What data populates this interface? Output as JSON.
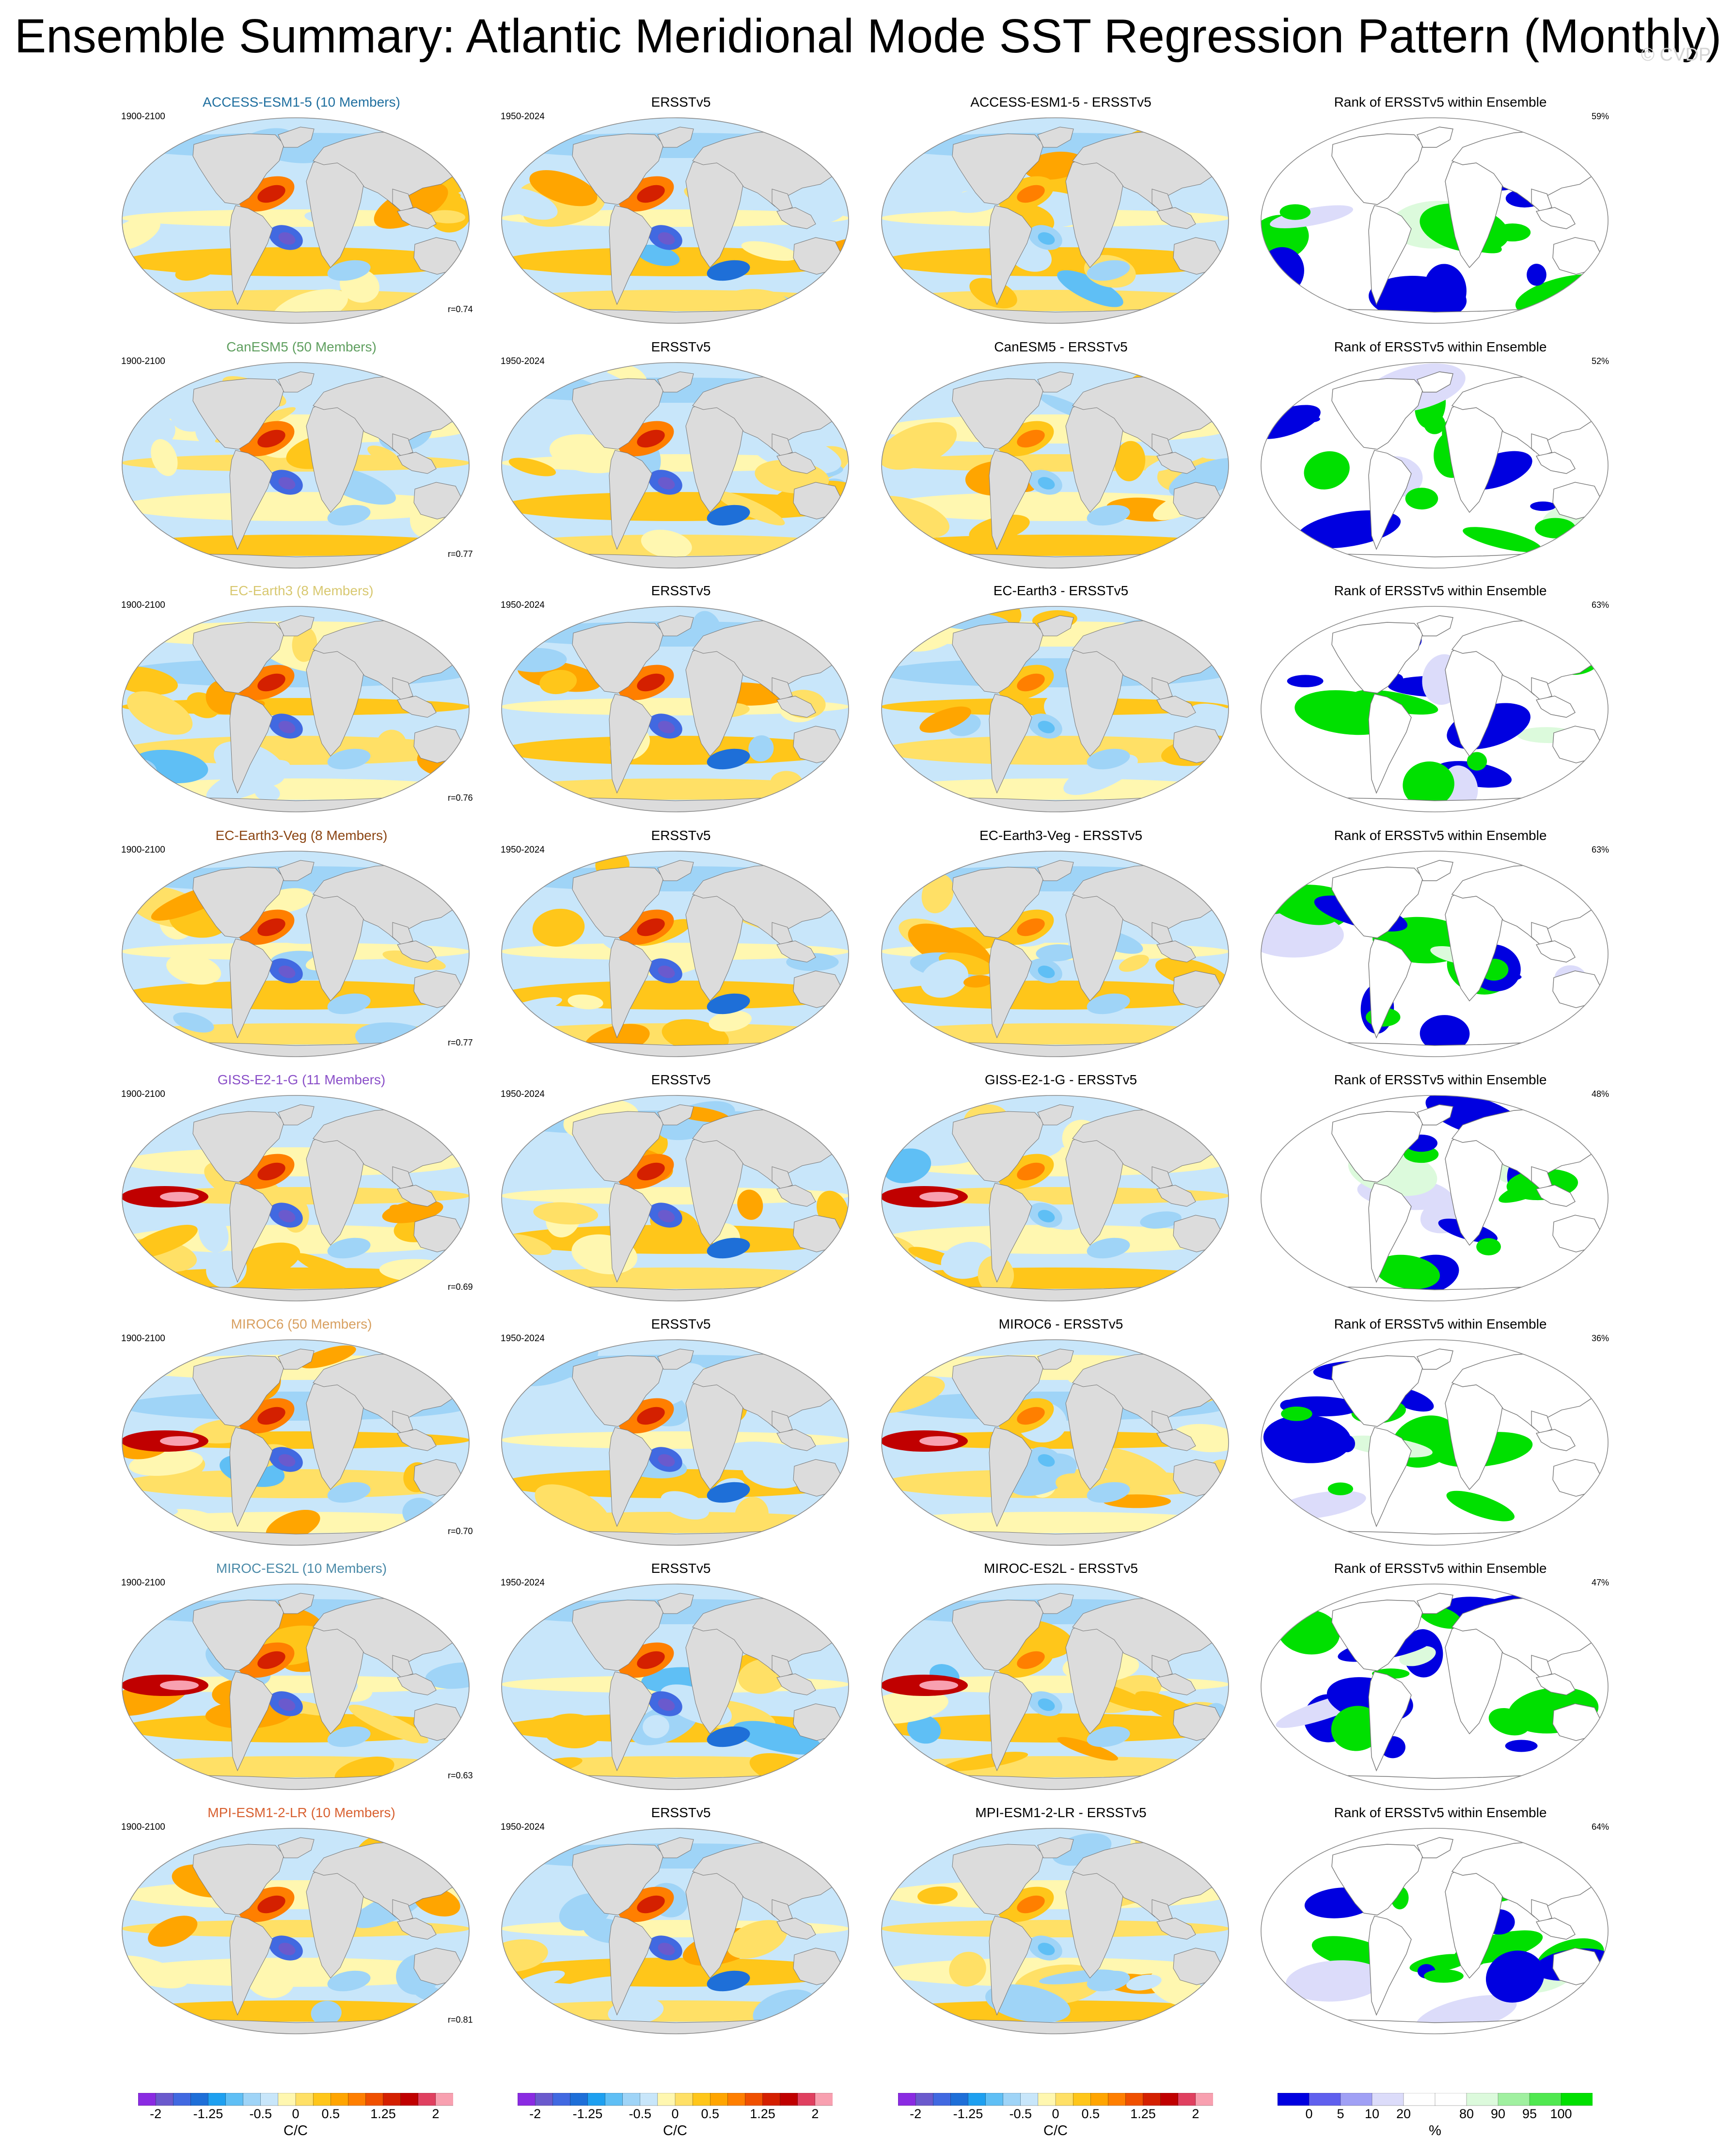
{
  "title": "Ensemble Summary: Atlantic Meridional Mode SST Regression Pattern (Monthly)",
  "watermark": "© CVDP",
  "colors": {
    "land": "#dcdcdc",
    "ocean": "#bfe0f7"
  },
  "columns": {
    "obs_title": "ERSSTv5",
    "obs_period": "1950-2024",
    "model_period": "1900-2100",
    "diff_suffix": " - ERSSTv5",
    "rank_title": "Rank of ERSSTv5 within Ensemble"
  },
  "rows": [
    {
      "model_title": "ACCESS-ESM1-5 (10 Members)",
      "model_color": "#1f6f9f",
      "diff_title": "ACCESS-ESM1-5 - ERSSTv5",
      "corr": "r=0.74",
      "rank_pct": "59%",
      "pattern": 0
    },
    {
      "model_title": "CanESM5 (50 Members)",
      "model_color": "#5f9f5f",
      "diff_title": "CanESM5 - ERSSTv5",
      "corr": "r=0.77",
      "rank_pct": "52%",
      "pattern": 1
    },
    {
      "model_title": "EC-Earth3 (8 Members)",
      "model_color": "#d8c870",
      "diff_title": "EC-Earth3 - ERSSTv5",
      "corr": "r=0.76",
      "rank_pct": "63%",
      "pattern": 2
    },
    {
      "model_title": "EC-Earth3-Veg (8 Members)",
      "model_color": "#8b4513",
      "diff_title": "EC-Earth3-Veg - ERSSTv5",
      "corr": "r=0.77",
      "rank_pct": "63%",
      "pattern": 3
    },
    {
      "model_title": "GISS-E2-1-G (11 Members)",
      "model_color": "#8a4fc8",
      "diff_title": "GISS-E2-1-G - ERSSTv5",
      "corr": "r=0.69",
      "rank_pct": "48%",
      "pattern": 4
    },
    {
      "model_title": "MIROC6 (50 Members)",
      "model_color": "#d8a060",
      "diff_title": "MIROC6 - ERSSTv5",
      "corr": "r=0.70",
      "rank_pct": "36%",
      "pattern": 5
    },
    {
      "model_title": "MIROC-ES2L (10 Members)",
      "model_color": "#4a8aa8",
      "diff_title": "MIROC-ES2L - ERSSTv5",
      "corr": "r=0.63",
      "rank_pct": "47%",
      "pattern": 6
    },
    {
      "model_title": "MPI-ESM1-2-LR (10 Members)",
      "model_color": "#d86030",
      "diff_title": "MPI-ESM1-2-LR - ERSSTv5",
      "corr": "r=0.81",
      "rank_pct": "64%",
      "pattern": 7
    }
  ],
  "regression_colorbar": {
    "colors": [
      "#8a2be2",
      "#6a5acd",
      "#4169e1",
      "#1e6fd8",
      "#1ea0f0",
      "#5fbff5",
      "#9fd4f7",
      "#c8e6fa",
      "#fff7b0",
      "#ffe066",
      "#ffc61a",
      "#ffa500",
      "#ff7f00",
      "#f05000",
      "#d42000",
      "#c00000",
      "#e04060",
      "#f8a0b0"
    ],
    "tick_labels": [
      "-2",
      "-1.25",
      "-0.5",
      "0",
      "0.5",
      "1.25",
      "2"
    ],
    "tick_positions": [
      1,
      4,
      7,
      9,
      11,
      14,
      17
    ],
    "unit": "C/C"
  },
  "rank_colorbar": {
    "colors": [
      "#0000e0",
      "#6060ee",
      "#a0a0f5",
      "#dcdcfa",
      "#ffffff",
      "#ffffff",
      "#dcfadc",
      "#a0f0a0",
      "#50e850",
      "#00e000"
    ],
    "tick_labels": [
      "0",
      "5",
      "10",
      "20",
      "80",
      "90",
      "95",
      "100"
    ],
    "tick_positions": [
      1,
      2,
      3,
      4,
      6,
      7,
      8,
      9
    ],
    "unit": "%"
  }
}
